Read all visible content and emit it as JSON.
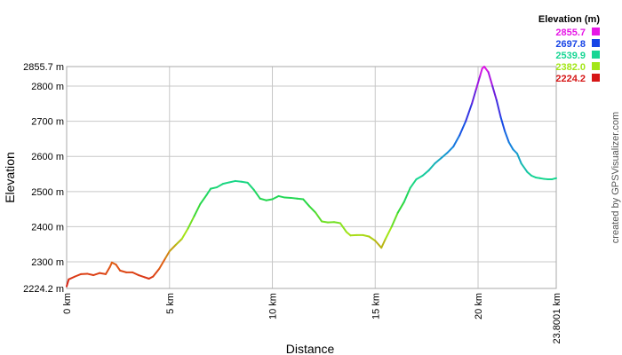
{
  "chart_data": {
    "type": "line",
    "xlabel": "Distance",
    "ylabel": "Elevation",
    "xlim": [
      0,
      23.8001
    ],
    "ylim": [
      2224.2,
      2855.7
    ],
    "grid": true,
    "x_ticks": [
      {
        "value": 0,
        "label": "0 km"
      },
      {
        "value": 5,
        "label": "5 km"
      },
      {
        "value": 10,
        "label": "10 km"
      },
      {
        "value": 15,
        "label": "15 km"
      },
      {
        "value": 20,
        "label": "20 km"
      },
      {
        "value": 23.8001,
        "label": "23.8001 km"
      }
    ],
    "y_ticks": [
      {
        "value": 2224.2,
        "label": "2224.2 m"
      },
      {
        "value": 2300,
        "label": "2300 m"
      },
      {
        "value": 2400,
        "label": "2400 m"
      },
      {
        "value": 2500,
        "label": "2500 m"
      },
      {
        "value": 2600,
        "label": "2600 m"
      },
      {
        "value": 2700,
        "label": "2700 m"
      },
      {
        "value": 2800,
        "label": "2800 m"
      },
      {
        "value": 2855.7,
        "label": "2855.7 m"
      }
    ],
    "legend": {
      "title": "Elevation (m)",
      "placement": "top-right",
      "entries": [
        {
          "label": "2855.7",
          "color": "#e617e6"
        },
        {
          "label": "2697.8",
          "color": "#1744e6"
        },
        {
          "label": "2539.9",
          "color": "#17d694"
        },
        {
          "label": "2382.0",
          "color": "#a3e617"
        },
        {
          "label": "2224.2",
          "color": "#d61717"
        }
      ]
    },
    "credit": "created by GPSVisualizer.com",
    "series": [
      {
        "color_by": "elevation",
        "x": [
          0,
          0.1,
          0.4,
          0.7,
          1.0,
          1.3,
          1.6,
          1.9,
          2.1,
          2.2,
          2.4,
          2.6,
          2.9,
          3.2,
          3.5,
          3.8,
          4.0,
          4.2,
          4.5,
          4.8,
          5.0,
          5.3,
          5.6,
          5.9,
          6.2,
          6.5,
          6.8,
          7.0,
          7.3,
          7.6,
          7.9,
          8.2,
          8.5,
          8.8,
          9.1,
          9.4,
          9.7,
          10.0,
          10.3,
          10.6,
          10.9,
          11.2,
          11.5,
          11.8,
          12.1,
          12.4,
          12.7,
          13.0,
          13.3,
          13.6,
          13.8,
          14.1,
          14.4,
          14.7,
          15.0,
          15.3,
          15.5,
          15.8,
          16.1,
          16.4,
          16.7,
          17.0,
          17.3,
          17.6,
          17.9,
          18.2,
          18.5,
          18.8,
          19.1,
          19.4,
          19.7,
          19.9,
          20.1,
          20.2,
          20.3,
          20.5,
          20.7,
          20.9,
          21.1,
          21.3,
          21.5,
          21.7,
          21.9,
          22.1,
          22.4,
          22.6,
          22.8,
          23.0,
          23.2,
          23.4,
          23.6,
          23.8001
        ],
        "y": [
          2230,
          2250,
          2258,
          2265,
          2266,
          2262,
          2268,
          2265,
          2285,
          2298,
          2292,
          2275,
          2270,
          2270,
          2262,
          2256,
          2252,
          2258,
          2280,
          2310,
          2330,
          2348,
          2365,
          2395,
          2430,
          2465,
          2490,
          2508,
          2512,
          2522,
          2526,
          2530,
          2528,
          2525,
          2505,
          2480,
          2475,
          2478,
          2487,
          2483,
          2482,
          2480,
          2478,
          2458,
          2440,
          2415,
          2412,
          2413,
          2410,
          2385,
          2375,
          2376,
          2376,
          2372,
          2360,
          2340,
          2365,
          2400,
          2440,
          2470,
          2510,
          2535,
          2545,
          2560,
          2580,
          2595,
          2610,
          2628,
          2660,
          2700,
          2750,
          2790,
          2830,
          2850,
          2855.7,
          2840,
          2800,
          2760,
          2712,
          2672,
          2640,
          2620,
          2608,
          2580,
          2555,
          2545,
          2540,
          2538,
          2536,
          2535,
          2535,
          2538
        ]
      }
    ]
  }
}
